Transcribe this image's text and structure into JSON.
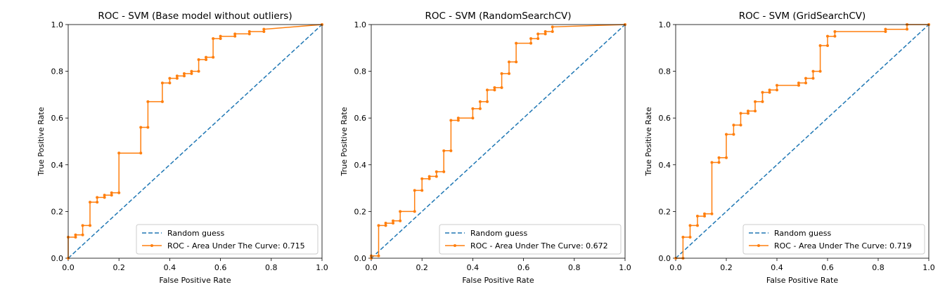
{
  "colors": {
    "random": "#1f77b4",
    "roc": "#ff7f0e",
    "axis": "#000000",
    "legend_border": "#cccccc"
  },
  "chart_data": [
    {
      "type": "line",
      "title": "ROC - SVM (Base model without outliers)",
      "xlabel": "False Positive Rate",
      "ylabel": "True Positive Rate",
      "xlim": [
        0,
        1
      ],
      "ylim": [
        0,
        1
      ],
      "xticks": [
        "0.0",
        "0.2",
        "0.4",
        "0.6",
        "0.8",
        "1.0"
      ],
      "yticks": [
        "0.0",
        "0.2",
        "0.4",
        "0.6",
        "0.8",
        "1.0"
      ],
      "legend_position": "lower-right",
      "grid": false,
      "series": [
        {
          "name": "Random guess",
          "style": "dashed",
          "x": [
            0,
            1
          ],
          "y": [
            0,
            1
          ]
        },
        {
          "name": "ROC - Area Under The Curve: 0.715",
          "style": "step-markers",
          "x": [
            0.0,
            0.0,
            0.029,
            0.029,
            0.057,
            0.057,
            0.086,
            0.086,
            0.114,
            0.114,
            0.143,
            0.143,
            0.171,
            0.171,
            0.2,
            0.2,
            0.286,
            0.286,
            0.314,
            0.314,
            0.371,
            0.371,
            0.4,
            0.4,
            0.429,
            0.429,
            0.457,
            0.457,
            0.486,
            0.486,
            0.514,
            0.514,
            0.543,
            0.543,
            0.571,
            0.571,
            0.6,
            0.6,
            0.657,
            0.657,
            0.714,
            0.714,
            0.771,
            0.771,
            1.0
          ],
          "y": [
            0.0,
            0.09,
            0.09,
            0.1,
            0.1,
            0.14,
            0.14,
            0.24,
            0.24,
            0.26,
            0.26,
            0.27,
            0.27,
            0.28,
            0.28,
            0.45,
            0.45,
            0.56,
            0.56,
            0.67,
            0.67,
            0.75,
            0.75,
            0.77,
            0.77,
            0.78,
            0.78,
            0.79,
            0.79,
            0.8,
            0.8,
            0.85,
            0.85,
            0.86,
            0.86,
            0.94,
            0.94,
            0.95,
            0.95,
            0.96,
            0.96,
            0.97,
            0.97,
            0.98,
            1.0
          ]
        }
      ]
    },
    {
      "type": "line",
      "title": "ROC - SVM (RandomSearchCV)",
      "xlabel": "False Positive Rate",
      "ylabel": "True Positive Rate",
      "xlim": [
        0,
        1
      ],
      "ylim": [
        0,
        1
      ],
      "xticks": [
        "0.0",
        "0.2",
        "0.4",
        "0.6",
        "0.8",
        "1.0"
      ],
      "yticks": [
        "0.0",
        "0.2",
        "0.4",
        "0.6",
        "0.8",
        "1.0"
      ],
      "legend_position": "lower-right",
      "grid": false,
      "series": [
        {
          "name": "Random guess",
          "style": "dashed",
          "x": [
            0,
            1
          ],
          "y": [
            0,
            1
          ]
        },
        {
          "name": "ROC - Area Under The Curve: 0.672",
          "style": "step-markers",
          "x": [
            0.0,
            0.0,
            0.029,
            0.029,
            0.057,
            0.057,
            0.086,
            0.086,
            0.114,
            0.114,
            0.171,
            0.171,
            0.2,
            0.2,
            0.229,
            0.229,
            0.257,
            0.257,
            0.286,
            0.286,
            0.314,
            0.314,
            0.343,
            0.343,
            0.4,
            0.4,
            0.429,
            0.429,
            0.457,
            0.457,
            0.486,
            0.486,
            0.514,
            0.514,
            0.543,
            0.543,
            0.571,
            0.571,
            0.629,
            0.629,
            0.657,
            0.657,
            0.686,
            0.686,
            0.714,
            0.714,
            1.0
          ],
          "y": [
            0.0,
            0.01,
            0.01,
            0.14,
            0.14,
            0.15,
            0.15,
            0.16,
            0.16,
            0.2,
            0.2,
            0.29,
            0.29,
            0.34,
            0.34,
            0.35,
            0.35,
            0.37,
            0.37,
            0.46,
            0.46,
            0.59,
            0.59,
            0.6,
            0.6,
            0.64,
            0.64,
            0.67,
            0.67,
            0.72,
            0.72,
            0.73,
            0.73,
            0.79,
            0.79,
            0.84,
            0.84,
            0.92,
            0.92,
            0.94,
            0.94,
            0.96,
            0.96,
            0.97,
            0.97,
            0.99,
            1.0
          ]
        }
      ]
    },
    {
      "type": "line",
      "title": "ROC - SVM (GridSearchCV)",
      "xlabel": "False Positive Rate",
      "ylabel": "True Positive Rate",
      "xlim": [
        0,
        1
      ],
      "ylim": [
        0,
        1
      ],
      "xticks": [
        "0.0",
        "0.2",
        "0.4",
        "0.6",
        "0.8",
        "1.0"
      ],
      "yticks": [
        "0.0",
        "0.2",
        "0.4",
        "0.6",
        "0.8",
        "1.0"
      ],
      "legend_position": "lower-right",
      "grid": false,
      "series": [
        {
          "name": "Random guess",
          "style": "dashed",
          "x": [
            0,
            1
          ],
          "y": [
            0,
            1
          ]
        },
        {
          "name": "ROC - Area Under The Curve: 0.719",
          "style": "step-markers",
          "x": [
            0.0,
            0.029,
            0.029,
            0.057,
            0.057,
            0.086,
            0.086,
            0.114,
            0.114,
            0.143,
            0.143,
            0.171,
            0.171,
            0.2,
            0.2,
            0.229,
            0.229,
            0.257,
            0.257,
            0.286,
            0.286,
            0.314,
            0.314,
            0.343,
            0.343,
            0.371,
            0.371,
            0.4,
            0.4,
            0.486,
            0.486,
            0.514,
            0.514,
            0.543,
            0.543,
            0.571,
            0.571,
            0.6,
            0.6,
            0.629,
            0.629,
            0.829,
            0.829,
            0.914,
            0.914,
            1.0
          ],
          "y": [
            0.0,
            0.0,
            0.09,
            0.09,
            0.14,
            0.14,
            0.18,
            0.18,
            0.19,
            0.19,
            0.41,
            0.41,
            0.43,
            0.43,
            0.53,
            0.53,
            0.57,
            0.57,
            0.62,
            0.62,
            0.63,
            0.63,
            0.67,
            0.67,
            0.71,
            0.71,
            0.72,
            0.72,
            0.74,
            0.74,
            0.75,
            0.75,
            0.77,
            0.77,
            0.8,
            0.8,
            0.91,
            0.91,
            0.95,
            0.95,
            0.97,
            0.97,
            0.98,
            0.98,
            1.0,
            1.0
          ]
        }
      ]
    }
  ]
}
